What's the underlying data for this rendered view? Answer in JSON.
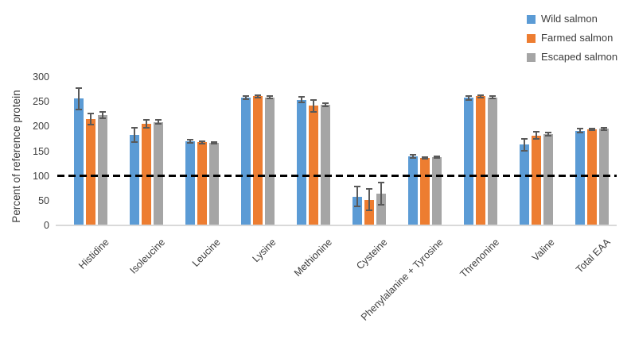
{
  "chart_data": {
    "type": "bar",
    "title": "",
    "ylabel": "Percent of reference protein",
    "xlabel": "",
    "ylim": [
      0,
      300
    ],
    "yticks": [
      0,
      50,
      100,
      150,
      200,
      250,
      300
    ],
    "grid": false,
    "legend_position": "top-right",
    "reference_line_y": 100,
    "error_bars": true,
    "categories": [
      "Histidine",
      "Isoleucine",
      "Leucine",
      "Lysine",
      "Methionine",
      "Cysteine",
      "Phenylalanine + Tyrosine",
      "Threnonine",
      "Valine",
      "Total EAA"
    ],
    "series": [
      {
        "name": "Wild salmon",
        "color": "#5B9BD5",
        "values": [
          256,
          183,
          170,
          258,
          254,
          58,
          140,
          258,
          163,
          191
        ],
        "errors": [
          22,
          14,
          3,
          3,
          6,
          20,
          3,
          4,
          12,
          4
        ]
      },
      {
        "name": "Farmed salmon",
        "color": "#ED7D31",
        "values": [
          215,
          205,
          168,
          261,
          242,
          52,
          136,
          261,
          182,
          194
        ],
        "errors": [
          11,
          8,
          2,
          2,
          12,
          21,
          2,
          2,
          7,
          2
        ]
      },
      {
        "name": "Escaped salmon",
        "color": "#A5A5A5",
        "values": [
          223,
          209,
          167,
          259,
          244,
          64,
          138,
          259,
          185,
          195
        ],
        "errors": [
          6,
          4,
          2,
          3,
          3,
          22,
          2,
          2,
          3,
          2
        ]
      }
    ]
  },
  "styles": {
    "error_bar_color": "#595959",
    "axis_line_color": "#D9D9D9",
    "reference_line_color": "#000000",
    "text_color": "#3d3d3d",
    "background": "#ffffff"
  }
}
